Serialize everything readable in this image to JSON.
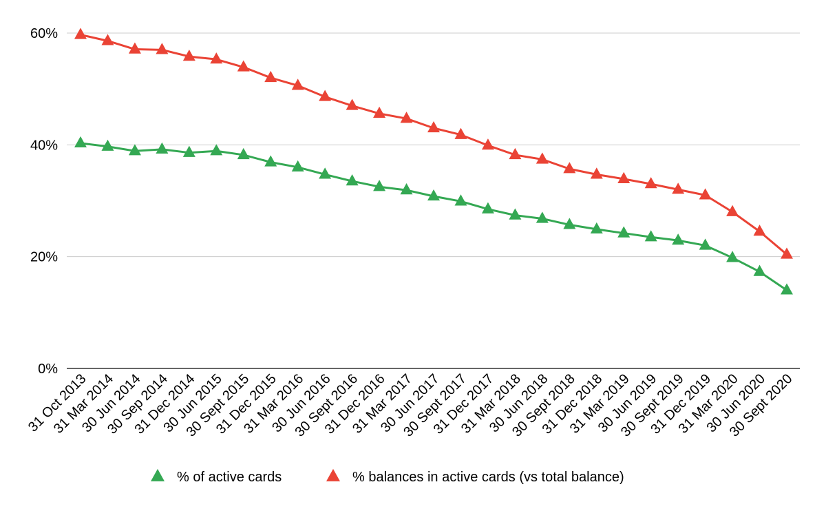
{
  "chart_data": {
    "type": "line",
    "title": "",
    "xlabel": "",
    "ylabel": "",
    "ylim": [
      0,
      60
    ],
    "y_ticks": [
      0,
      20,
      40,
      60
    ],
    "y_tick_labels": [
      "0%",
      "20%",
      "40%",
      "60%"
    ],
    "grid": true,
    "legend_position": "bottom",
    "categories": [
      "31 Oct 2013",
      "31 Mar 2014",
      "30 Jun 2014",
      "30 Sep 2014",
      "31 Dec 2014",
      "30 Jun 2015",
      "30 Sept 2015",
      "31 Dec 2015",
      "31 Mar 2016",
      "30 Jun 2016",
      "30 Sept 2016",
      "31 Dec 2016",
      "31 Mar 2017",
      "30 Jun 2017",
      "30 Sept 2017",
      "31 Dec 2017",
      "31 Mar 2018",
      "30 Jun 2018",
      "30 Sept 2018",
      "31 Dec 2018",
      "31 Mar 2019",
      "30 Jun 2019",
      "30 Sept 2019",
      "31 Dec 2019",
      "31 Mar 2020",
      "30 Jun 2020",
      "30 Sept 2020"
    ],
    "series": [
      {
        "name": "% of active cards",
        "color": "#34a853",
        "marker": "triangle",
        "values": [
          40.3,
          39.7,
          38.9,
          39.2,
          38.6,
          38.9,
          38.2,
          36.9,
          36.0,
          34.7,
          33.5,
          32.5,
          31.9,
          30.8,
          29.9,
          28.5,
          27.4,
          26.8,
          25.7,
          24.9,
          24.2,
          23.5,
          22.9,
          22.0,
          19.8,
          17.3,
          14.0
        ]
      },
      {
        "name": "% balances in active cards (vs total balance)",
        "color": "#ea4335",
        "marker": "triangle",
        "values": [
          59.7,
          58.6,
          57.1,
          57.0,
          55.8,
          55.3,
          53.9,
          52.0,
          50.6,
          48.6,
          47.0,
          45.6,
          44.7,
          43.0,
          41.8,
          39.9,
          38.2,
          37.4,
          35.7,
          34.7,
          33.9,
          33.0,
          32.0,
          31.0,
          28.0,
          24.5,
          20.4
        ]
      }
    ]
  }
}
